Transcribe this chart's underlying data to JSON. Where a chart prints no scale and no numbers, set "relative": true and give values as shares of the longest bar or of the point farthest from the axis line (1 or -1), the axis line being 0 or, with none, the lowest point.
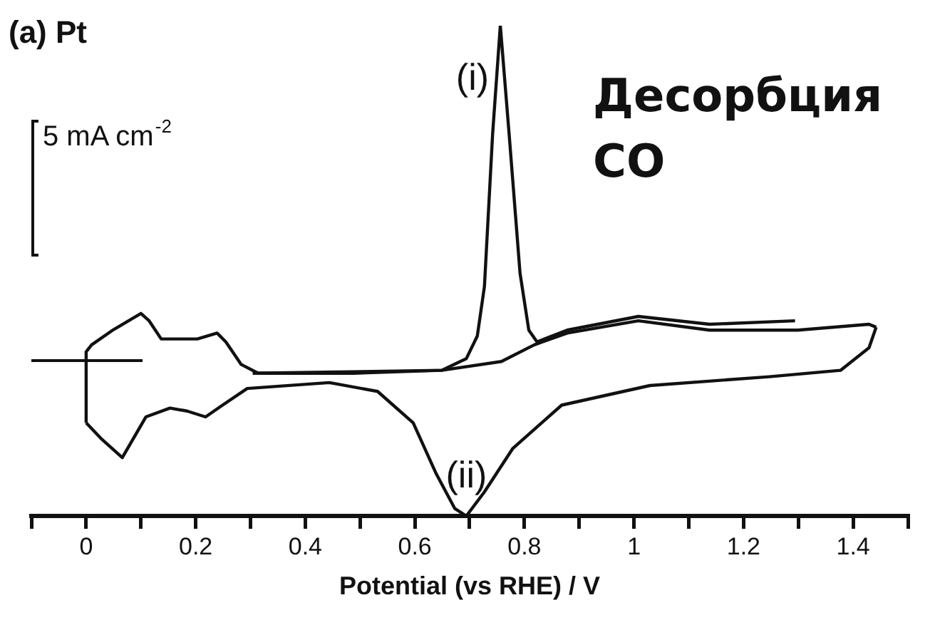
{
  "chart_data": {
    "type": "line",
    "title": "(a) Pt",
    "xlabel": "Potential (vs RHE) / V",
    "relative": true,
    "xlim": [
      -0.1,
      1.5
    ],
    "xticks": [
      {
        "value": -0.1,
        "label": null
      },
      0,
      {
        "value": 0.1,
        "label": null
      },
      0.2,
      {
        "value": 0.3,
        "label": null
      },
      0.4,
      {
        "value": 0.5,
        "label": null
      },
      0.6,
      {
        "value": 0.7,
        "label": null
      },
      0.8,
      {
        "value": 0.9,
        "label": null
      },
      1,
      {
        "value": 1.1,
        "label": null
      },
      1.2,
      {
        "value": 1.3,
        "label": null
      },
      1.4,
      {
        "value": 1.5,
        "label": null
      }
    ],
    "marker": "none",
    "line_style": "solid",
    "annotations": [
      "5 mA cm$^{-2}$",
      "Десорбция CO"
    ],
    "series": [
      {
        "name": "(i)",
        "color": "#111111",
        "x": [
          0.304,
          0.649,
          0.694,
          0.714,
          0.727,
          0.742,
          0.756,
          0.772,
          0.792,
          0.808,
          0.823,
          0.878,
          1.008,
          1.138,
          1.294
        ],
        "values": [
          0.291,
          0.297,
          0.321,
          0.367,
          0.468,
          0.78,
          1,
          0.78,
          0.495,
          0.379,
          0.355,
          0.379,
          0.407,
          0.391,
          0.398
        ]
      },
      {
        "color": "#111111",
        "x": [
          0.0,
          0.0,
          0.01,
          0.05,
          0.1,
          0.115,
          0.137,
          0.174,
          0.203,
          0.239,
          0.255,
          0.283,
          0.314,
          0.488,
          0.649,
          0.758,
          0.818,
          0.878,
          1.008,
          1.138,
          1.299,
          1.429,
          1.442
        ],
        "values": [
          0.19,
          0.335,
          0.349,
          0.38,
          0.413,
          0.398,
          0.361,
          0.361,
          0.361,
          0.373,
          0.355,
          0.309,
          0.291,
          0.291,
          0.297,
          0.315,
          0.349,
          0.373,
          0.398,
          0.379,
          0.379,
          0.391,
          0.385
        ]
      },
      {
        "name": "(ii)",
        "color": "#111111",
        "x": [
          1.442,
          1.429,
          1.377,
          1.247,
          1.029,
          0.868,
          0.779,
          0.727,
          0.694,
          0.673,
          0.639,
          0.597,
          0.532,
          0.444,
          0.294,
          0.249,
          0.218,
          0.184,
          0.153,
          0.109,
          0.066,
          0.029,
          0.0
        ],
        "values": [
          0.385,
          0.343,
          0.297,
          0.284,
          0.266,
          0.226,
          0.138,
          0.049,
          0.0,
          0.015,
          0.086,
          0.19,
          0.254,
          0.272,
          0.26,
          0.226,
          0.202,
          0.214,
          0.22,
          0.202,
          0.119,
          0.156,
          0.19
        ]
      }
    ]
  }
}
